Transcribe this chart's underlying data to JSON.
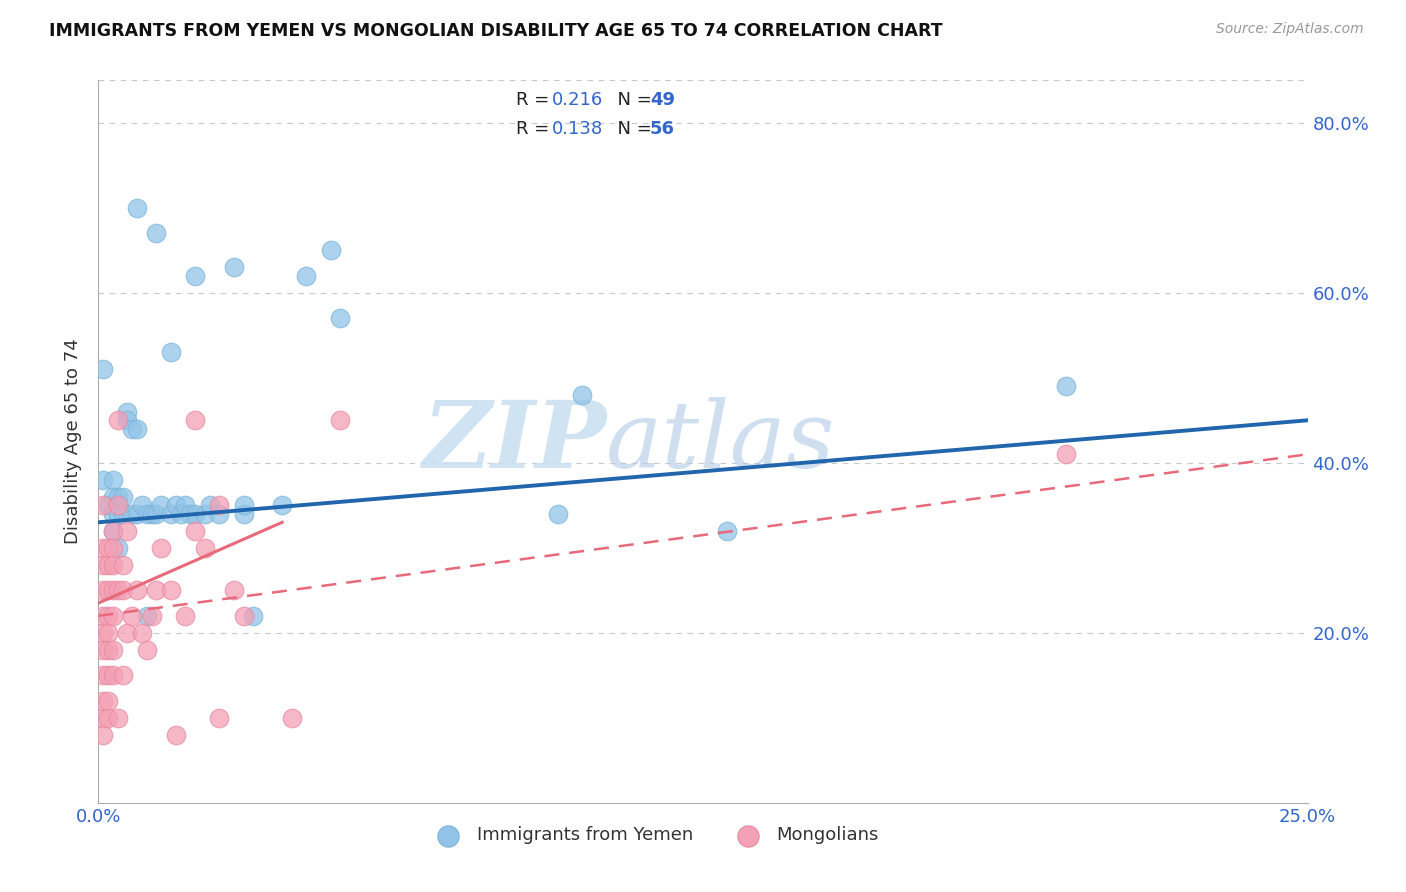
{
  "title": "IMMIGRANTS FROM YEMEN VS MONGOLIAN DISABILITY AGE 65 TO 74 CORRELATION CHART",
  "source": "Source: ZipAtlas.com",
  "ylabel": "Disability Age 65 to 74",
  "xlim": [
    0.0,
    0.25
  ],
  "ylim": [
    0.0,
    0.85
  ],
  "color_blue": "#91c4e8",
  "color_pink": "#f4a0b5",
  "line_blue": "#2166ac",
  "line_pink": "#e8697a",
  "watermark_zip": "ZIP",
  "watermark_atlas": "atlas",
  "yemen_x": [
    0.001,
    0.001,
    0.002,
    0.003,
    0.003,
    0.003,
    0.003,
    0.004,
    0.004,
    0.004,
    0.005,
    0.005,
    0.006,
    0.006,
    0.007,
    0.007,
    0.008,
    0.008,
    0.009,
    0.01,
    0.01,
    0.011,
    0.012,
    0.013,
    0.015,
    0.016,
    0.017,
    0.018,
    0.019,
    0.02,
    0.022,
    0.023,
    0.025,
    0.028,
    0.03,
    0.03,
    0.032,
    0.038,
    0.043,
    0.048,
    0.05,
    0.095,
    0.1,
    0.13,
    0.2,
    0.008,
    0.012,
    0.02,
    0.015
  ],
  "yemen_y": [
    0.51,
    0.38,
    0.35,
    0.34,
    0.38,
    0.36,
    0.32,
    0.3,
    0.34,
    0.36,
    0.36,
    0.34,
    0.46,
    0.45,
    0.34,
    0.44,
    0.44,
    0.34,
    0.35,
    0.34,
    0.22,
    0.34,
    0.34,
    0.35,
    0.34,
    0.35,
    0.34,
    0.35,
    0.34,
    0.34,
    0.34,
    0.35,
    0.34,
    0.63,
    0.34,
    0.35,
    0.22,
    0.35,
    0.62,
    0.65,
    0.57,
    0.34,
    0.48,
    0.32,
    0.49,
    0.7,
    0.67,
    0.62,
    0.53
  ],
  "mongol_x": [
    0.001,
    0.001,
    0.001,
    0.001,
    0.001,
    0.001,
    0.001,
    0.001,
    0.001,
    0.001,
    0.001,
    0.002,
    0.002,
    0.002,
    0.002,
    0.002,
    0.002,
    0.002,
    0.002,
    0.002,
    0.003,
    0.003,
    0.003,
    0.003,
    0.003,
    0.003,
    0.003,
    0.004,
    0.004,
    0.004,
    0.004,
    0.005,
    0.005,
    0.005,
    0.006,
    0.006,
    0.007,
    0.008,
    0.009,
    0.01,
    0.011,
    0.012,
    0.013,
    0.015,
    0.016,
    0.018,
    0.02,
    0.022,
    0.025,
    0.028,
    0.03,
    0.04,
    0.05,
    0.2,
    0.02,
    0.025
  ],
  "mongol_y": [
    0.25,
    0.28,
    0.22,
    0.2,
    0.15,
    0.18,
    0.1,
    0.12,
    0.08,
    0.3,
    0.35,
    0.3,
    0.28,
    0.25,
    0.22,
    0.2,
    0.18,
    0.15,
    0.12,
    0.1,
    0.32,
    0.3,
    0.28,
    0.25,
    0.22,
    0.18,
    0.15,
    0.45,
    0.35,
    0.25,
    0.1,
    0.28,
    0.25,
    0.15,
    0.32,
    0.2,
    0.22,
    0.25,
    0.2,
    0.18,
    0.22,
    0.25,
    0.3,
    0.25,
    0.08,
    0.22,
    0.32,
    0.3,
    0.1,
    0.25,
    0.22,
    0.1,
    0.45,
    0.41,
    0.45,
    0.35
  ]
}
